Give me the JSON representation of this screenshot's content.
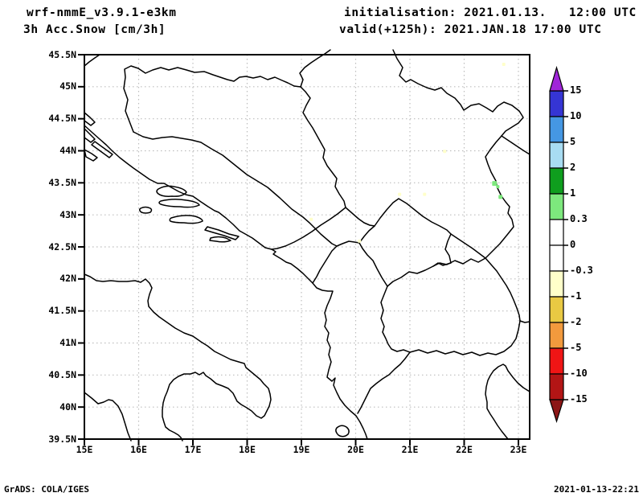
{
  "header": {
    "model": "wrf-nmmE_v3.9.1-e3km",
    "product": "3h Acc.Snow [cm/3h]",
    "init_label": "initialisation: 2021.01.13.   12:00 UTC",
    "valid_label": "valid(+125h): 2021.JAN.18 17:00 UTC"
  },
  "footer": {
    "left": "GrADS: COLA/IGES",
    "right": "2021-01-13-22:21"
  },
  "chart_data": {
    "type": "heatmap",
    "subtype": "geographic-contour-map",
    "title": "3h Acc.Snow [cm/3h]",
    "model": "wrf-nmmE_v3.9.1-e3km",
    "units": "cm/3h",
    "region": "Adriatic / Balkans",
    "x_axis": {
      "ticks": [
        {
          "value": 15,
          "label": "15E"
        },
        {
          "value": 16,
          "label": "16E"
        },
        {
          "value": 17,
          "label": "17E"
        },
        {
          "value": 18,
          "label": "18E"
        },
        {
          "value": 19,
          "label": "19E"
        },
        {
          "value": 20,
          "label": "20E"
        },
        {
          "value": 21,
          "label": "21E"
        },
        {
          "value": 22,
          "label": "22E"
        },
        {
          "value": 23,
          "label": "23E"
        }
      ],
      "range": [
        15,
        23.2
      ]
    },
    "y_axis": {
      "ticks": [
        {
          "value": 45.5,
          "label": "45.5N"
        },
        {
          "value": 45,
          "label": "45N"
        },
        {
          "value": 44.5,
          "label": "44.5N"
        },
        {
          "value": 44,
          "label": "44N"
        },
        {
          "value": 43.5,
          "label": "43.5N"
        },
        {
          "value": 43,
          "label": "43N"
        },
        {
          "value": 42.5,
          "label": "42.5N"
        },
        {
          "value": 42,
          "label": "42N"
        },
        {
          "value": 41.5,
          "label": "41.5N"
        },
        {
          "value": 41,
          "label": "41N"
        },
        {
          "value": 40.5,
          "label": "40.5N"
        },
        {
          "value": 40,
          "label": "40N"
        },
        {
          "value": 39.5,
          "label": "39.5N"
        }
      ],
      "range": [
        39.5,
        45.5
      ]
    },
    "grid": {
      "lon_step": 1,
      "lat_step": 0.5,
      "style": "dotted",
      "color": "#bdbdbd"
    },
    "colorbar": {
      "boundaries": [
        15,
        10,
        5,
        2,
        1,
        0.3,
        0,
        -0.3,
        -1,
        -2,
        -5,
        -10,
        -15
      ],
      "labels": [
        "15",
        "10",
        "5",
        "2",
        "1",
        "0.3",
        "0",
        "-0.3",
        "-1",
        "-2",
        "-5",
        "-10",
        "-15"
      ],
      "band_colors": [
        "#3535d4",
        "#4597e3",
        "#a8dcf2",
        "#0f9e1e",
        "#7de87d",
        "#ffffff",
        "#ffffff",
        "#ffffca",
        "#e9c943",
        "#f29a3d",
        "#f01515",
        "#b31515"
      ],
      "over_color": "#a026d9",
      "under_color": "#8c1616"
    },
    "snow_spots": [
      {
        "lon": 22.56,
        "lat": 43.49,
        "band": "0.3 to 1",
        "color": "#7de87d",
        "size": 6
      },
      {
        "lon": 22.62,
        "lat": 43.44,
        "band": "0.3 to 1",
        "color": "#7de87d",
        "size": 4
      },
      {
        "lon": 22.67,
        "lat": 43.28,
        "band": "0.3 to 1",
        "color": "#7de87d",
        "size": 5
      },
      {
        "lon": 22.73,
        "lat": 45.35,
        "band": "-1 to -0.3",
        "color": "#ffffca",
        "size": 4
      },
      {
        "lon": 21.64,
        "lat": 43.99,
        "band": "-1 to -0.3",
        "color": "#ffffca",
        "size": 4
      },
      {
        "lon": 21.27,
        "lat": 43.32,
        "band": "-1 to -0.3",
        "color": "#ffffca",
        "size": 4
      },
      {
        "lon": 20.81,
        "lat": 43.32,
        "band": "-1 to -0.3",
        "color": "#ffffca",
        "size": 4
      },
      {
        "lon": 20.07,
        "lat": 42.59,
        "band": "-1 to -0.3",
        "color": "#ffffca",
        "size": 4
      },
      {
        "lon": 19.18,
        "lat": 42.93,
        "band": "-1 to -0.3",
        "color": "#ffffca",
        "size": 4
      }
    ],
    "frame_color": "#000000"
  }
}
